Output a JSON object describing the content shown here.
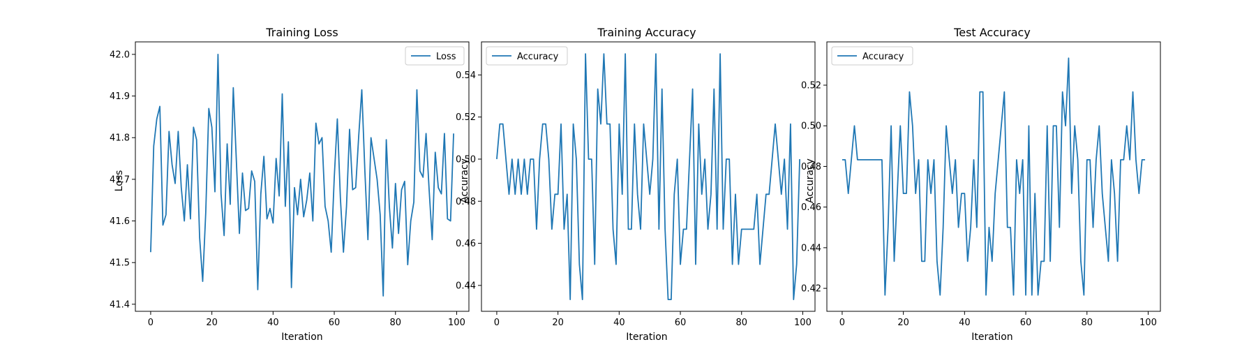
{
  "colors": {
    "series": "#1f77b4",
    "axis": "#000000",
    "legend_border": "#cccccc",
    "background": "#ffffff"
  },
  "chart_data": [
    {
      "type": "line",
      "title": "Training Loss",
      "xlabel": "Iteration",
      "ylabel": "Loss",
      "xlim": [
        -5,
        104
      ],
      "ylim": [
        41.383,
        42.03
      ],
      "xticks": [
        0,
        20,
        40,
        60,
        80,
        100
      ],
      "yticks": [
        41.4,
        41.5,
        41.6,
        41.7,
        41.8,
        41.9,
        42.0
      ],
      "ytick_labels": [
        "41.4",
        "41.5",
        "41.6",
        "41.7",
        "41.8",
        "41.9",
        "42.0"
      ],
      "grid": false,
      "legend_position": "top-right",
      "series": [
        {
          "name": "Loss",
          "color": "#1f77b4",
          "x": [
            0,
            1,
            2,
            3,
            4,
            5,
            6,
            7,
            8,
            9,
            10,
            11,
            12,
            13,
            14,
            15,
            16,
            17,
            18,
            19,
            20,
            21,
            22,
            23,
            24,
            25,
            26,
            27,
            28,
            29,
            30,
            31,
            32,
            33,
            34,
            35,
            36,
            37,
            38,
            39,
            40,
            41,
            42,
            43,
            44,
            45,
            46,
            47,
            48,
            49,
            50,
            51,
            52,
            53,
            54,
            55,
            56,
            57,
            58,
            59,
            60,
            61,
            62,
            63,
            64,
            65,
            66,
            67,
            68,
            69,
            70,
            71,
            72,
            73,
            74,
            75,
            76,
            77,
            78,
            79,
            80,
            81,
            82,
            83,
            84,
            85,
            86,
            87,
            88,
            89,
            90,
            91,
            92,
            93,
            94,
            95,
            96,
            97,
            98,
            99
          ],
          "y": [
            41.525,
            41.78,
            41.845,
            41.875,
            41.59,
            41.615,
            41.815,
            41.735,
            41.69,
            41.815,
            41.68,
            41.6,
            41.735,
            41.605,
            41.825,
            41.795,
            41.56,
            41.455,
            41.62,
            41.87,
            41.825,
            41.67,
            42.0,
            41.665,
            41.565,
            41.785,
            41.64,
            41.92,
            41.745,
            41.57,
            41.715,
            41.625,
            41.63,
            41.72,
            41.695,
            41.435,
            41.665,
            41.755,
            41.605,
            41.63,
            41.595,
            41.75,
            41.66,
            41.905,
            41.635,
            41.79,
            41.44,
            41.68,
            41.615,
            41.7,
            41.61,
            41.65,
            41.715,
            41.6,
            41.835,
            41.785,
            41.8,
            41.635,
            41.6,
            41.525,
            41.705,
            41.845,
            41.655,
            41.525,
            41.635,
            41.82,
            41.675,
            41.68,
            41.805,
            41.915,
            41.72,
            41.555,
            41.8,
            41.75,
            41.7,
            41.615,
            41.42,
            41.795,
            41.635,
            41.535,
            41.69,
            41.57,
            41.675,
            41.695,
            41.495,
            41.6,
            41.645,
            41.915,
            41.72,
            41.705,
            41.81,
            41.675,
            41.555,
            41.765,
            41.68,
            41.665,
            41.81,
            41.605,
            41.6,
            41.81
          ]
        }
      ]
    },
    {
      "type": "line",
      "title": "Training Accuracy",
      "xlabel": "Iteration",
      "ylabel": "Accuracy",
      "xlim": [
        -5,
        104
      ],
      "ylim": [
        0.4277,
        0.5557
      ],
      "xticks": [
        0,
        20,
        40,
        60,
        80,
        100
      ],
      "yticks": [
        0.44,
        0.46,
        0.48,
        0.5,
        0.52,
        0.54
      ],
      "ytick_labels": [
        "0.44",
        "0.46",
        "0.48",
        "0.50",
        "0.52",
        "0.54"
      ],
      "grid": false,
      "legend_position": "top-left",
      "series": [
        {
          "name": "Accuracy",
          "color": "#1f77b4",
          "x": [
            0,
            1,
            2,
            3,
            4,
            5,
            6,
            7,
            8,
            9,
            10,
            11,
            12,
            13,
            14,
            15,
            16,
            17,
            18,
            19,
            20,
            21,
            22,
            23,
            24,
            25,
            26,
            27,
            28,
            29,
            30,
            31,
            32,
            33,
            34,
            35,
            36,
            37,
            38,
            39,
            40,
            41,
            42,
            43,
            44,
            45,
            46,
            47,
            48,
            49,
            50,
            51,
            52,
            53,
            54,
            55,
            56,
            57,
            58,
            59,
            60,
            61,
            62,
            63,
            64,
            65,
            66,
            67,
            68,
            69,
            70,
            71,
            72,
            73,
            74,
            75,
            76,
            77,
            78,
            79,
            80,
            81,
            82,
            83,
            84,
            85,
            86,
            87,
            88,
            89,
            90,
            91,
            92,
            93,
            94,
            95,
            96,
            97,
            98,
            99
          ],
          "y": [
            0.5,
            0.5167,
            0.5167,
            0.5,
            0.4833,
            0.5,
            0.4833,
            0.5,
            0.4833,
            0.5,
            0.4833,
            0.5,
            0.5,
            0.4667,
            0.5,
            0.5167,
            0.5167,
            0.5,
            0.4667,
            0.4833,
            0.4833,
            0.5167,
            0.4667,
            0.4833,
            0.4333,
            0.5167,
            0.5,
            0.45,
            0.4333,
            0.55,
            0.5,
            0.5,
            0.45,
            0.5333,
            0.5167,
            0.55,
            0.5167,
            0.5167,
            0.4667,
            0.45,
            0.5167,
            0.4833,
            0.55,
            0.4667,
            0.4667,
            0.5167,
            0.4833,
            0.4667,
            0.5167,
            0.5,
            0.4833,
            0.5,
            0.55,
            0.4667,
            0.5333,
            0.4667,
            0.4333,
            0.4333,
            0.4833,
            0.5,
            0.45,
            0.4667,
            0.4667,
            0.5,
            0.5333,
            0.45,
            0.5167,
            0.4833,
            0.5,
            0.4667,
            0.4833,
            0.5333,
            0.4667,
            0.55,
            0.4667,
            0.5,
            0.5,
            0.45,
            0.4833,
            0.45,
            0.4667,
            0.4667,
            0.4667,
            0.4667,
            0.4667,
            0.4833,
            0.45,
            0.4667,
            0.4833,
            0.4833,
            0.5,
            0.5167,
            0.5,
            0.4833,
            0.5,
            0.4667,
            0.5167,
            0.4333,
            0.45,
            0.5
          ]
        }
      ]
    },
    {
      "type": "line",
      "title": "Test Accuracy",
      "xlabel": "Iteration",
      "ylabel": "Accuracy",
      "xlim": [
        -5,
        104
      ],
      "ylim": [
        0.4087,
        0.5413
      ],
      "xticks": [
        0,
        20,
        40,
        60,
        80,
        100
      ],
      "yticks": [
        0.42,
        0.44,
        0.46,
        0.48,
        0.5,
        0.52
      ],
      "ytick_labels": [
        "0.42",
        "0.44",
        "0.46",
        "0.48",
        "0.50",
        "0.52"
      ],
      "grid": false,
      "legend_position": "top-left",
      "series": [
        {
          "name": "Accuracy",
          "color": "#1f77b4",
          "x": [
            0,
            1,
            2,
            3,
            4,
            5,
            6,
            7,
            8,
            9,
            10,
            11,
            12,
            13,
            14,
            15,
            16,
            17,
            18,
            19,
            20,
            21,
            22,
            23,
            24,
            25,
            26,
            27,
            28,
            29,
            30,
            31,
            32,
            33,
            34,
            35,
            36,
            37,
            38,
            39,
            40,
            41,
            42,
            43,
            44,
            45,
            46,
            47,
            48,
            49,
            50,
            51,
            52,
            53,
            54,
            55,
            56,
            57,
            58,
            59,
            60,
            61,
            62,
            63,
            64,
            65,
            66,
            67,
            68,
            69,
            70,
            71,
            72,
            73,
            74,
            75,
            76,
            77,
            78,
            79,
            80,
            81,
            82,
            83,
            84,
            85,
            86,
            87,
            88,
            89,
            90,
            91,
            92,
            93,
            94,
            95,
            96,
            97,
            98,
            99
          ],
          "y": [
            0.4833,
            0.4833,
            0.4667,
            0.4833,
            0.5,
            0.4833,
            0.4833,
            0.4833,
            0.4833,
            0.4833,
            0.4833,
            0.4833,
            0.4833,
            0.4833,
            0.4167,
            0.45,
            0.5,
            0.4333,
            0.4667,
            0.5,
            0.4667,
            0.4667,
            0.5167,
            0.5,
            0.4667,
            0.4833,
            0.4333,
            0.4333,
            0.4833,
            0.4667,
            0.4833,
            0.4333,
            0.4167,
            0.45,
            0.5,
            0.4833,
            0.4667,
            0.4833,
            0.45,
            0.4667,
            0.4667,
            0.4333,
            0.45,
            0.4833,
            0.45,
            0.5167,
            0.5167,
            0.4167,
            0.45,
            0.4333,
            0.4667,
            0.4833,
            0.5,
            0.5167,
            0.45,
            0.45,
            0.4167,
            0.4833,
            0.4667,
            0.4833,
            0.4167,
            0.5,
            0.4167,
            0.4667,
            0.4167,
            0.4333,
            0.4333,
            0.5,
            0.4333,
            0.5,
            0.5,
            0.45,
            0.5167,
            0.5,
            0.5333,
            0.4667,
            0.5,
            0.4833,
            0.4333,
            0.4167,
            0.4833,
            0.4833,
            0.45,
            0.4833,
            0.5,
            0.4667,
            0.45,
            0.4333,
            0.4833,
            0.4667,
            0.4333,
            0.4833,
            0.4833,
            0.5,
            0.4833,
            0.5167,
            0.4833,
            0.4667,
            0.4833,
            0.4833
          ]
        }
      ]
    }
  ]
}
